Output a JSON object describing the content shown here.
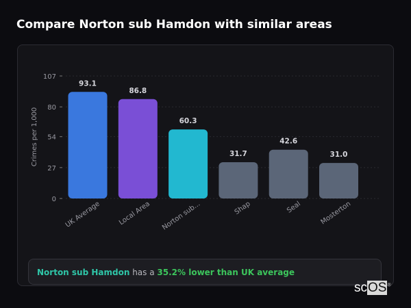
{
  "title": "Compare Norton sub Hamdon with similar areas",
  "chart_data": {
    "type": "bar",
    "title": "",
    "xlabel": "",
    "ylabel": "Crimes per 1,000",
    "ylim": [
      0,
      107
    ],
    "yticks": [
      0,
      27,
      54,
      80,
      107
    ],
    "grid": true,
    "categories": [
      "UK Average",
      "Local Area",
      "Norton sub...",
      "Shap",
      "Seal",
      "Mosterton"
    ],
    "values": [
      93.1,
      86.8,
      60.3,
      31.7,
      42.6,
      31.0
    ],
    "value_labels": [
      "93.1",
      "86.8",
      "60.3",
      "31.7",
      "42.6",
      "31.0"
    ],
    "colors": [
      "#3a78de",
      "#7a4fd6",
      "#22b8d0",
      "#5b6678",
      "#5b6678",
      "#5b6678"
    ]
  },
  "summary": {
    "area": "Norton sub Hamdon",
    "middle": " has a ",
    "comparison": "35.2% lower than UK average"
  },
  "logo": {
    "text_sc": "sc",
    "text_os": "OS",
    "mark": "®"
  }
}
